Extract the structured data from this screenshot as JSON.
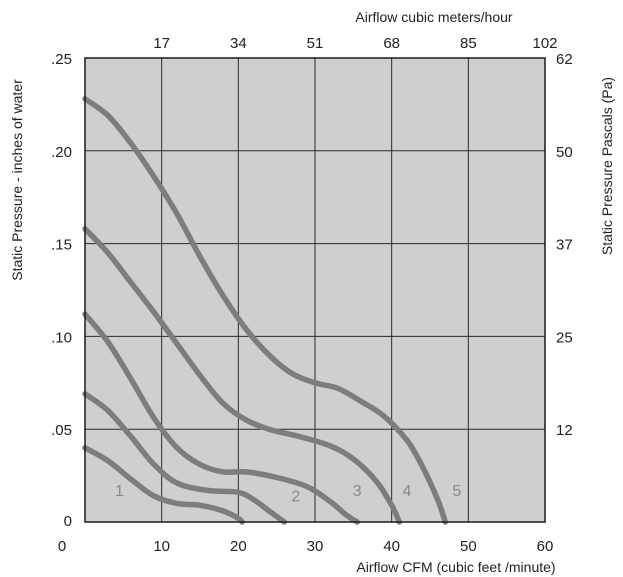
{
  "chart_data": {
    "type": "line",
    "xlabel_bottom": "Airflow  CFM (cubic feet /minute)",
    "xlabel_top": "Airflow cubic meters/hour",
    "ylabel_left": "Static Pressure - inches of water",
    "ylabel_right": "Static Pressure Pascals (Pa)",
    "xlim": [
      0,
      60
    ],
    "ylim": [
      0,
      0.25
    ],
    "grid": true,
    "bottom_ticks": [
      {
        "value": 0,
        "label": "0"
      },
      {
        "value": 10,
        "label": "10"
      },
      {
        "value": 20,
        "label": "20"
      },
      {
        "value": 30,
        "label": "30"
      },
      {
        "value": 40,
        "label": "40"
      },
      {
        "value": 50,
        "label": "50"
      },
      {
        "value": 60,
        "label": "60"
      }
    ],
    "top_ticks": [
      {
        "value": 10,
        "label": "17"
      },
      {
        "value": 20,
        "label": "34"
      },
      {
        "value": 30,
        "label": "51"
      },
      {
        "value": 40,
        "label": "68"
      },
      {
        "value": 50,
        "label": "85"
      },
      {
        "value": 60,
        "label": "102"
      }
    ],
    "left_ticks": [
      {
        "value": 0,
        "label": "0"
      },
      {
        "value": 0.05,
        "label": ".05"
      },
      {
        "value": 0.1,
        "label": ".10"
      },
      {
        "value": 0.15,
        "label": ".15"
      },
      {
        "value": 0.2,
        "label": ".20"
      },
      {
        "value": 0.25,
        "label": ".25"
      }
    ],
    "right_ticks": [
      {
        "value": 0.05,
        "label": "12"
      },
      {
        "value": 0.1,
        "label": "25"
      },
      {
        "value": 0.15,
        "label": "37"
      },
      {
        "value": 0.2,
        "label": "50"
      },
      {
        "value": 0.25,
        "label": "62"
      }
    ],
    "series": [
      {
        "name": "1",
        "points": [
          [
            0,
            0.04
          ],
          [
            3,
            0.033
          ],
          [
            6,
            0.023
          ],
          [
            9,
            0.014
          ],
          [
            12,
            0.01
          ],
          [
            15,
            0.009
          ],
          [
            18,
            0.006
          ],
          [
            20,
            0.002
          ],
          [
            20.5,
            0.0
          ]
        ]
      },
      {
        "name": "2",
        "points": [
          [
            0,
            0.069
          ],
          [
            3,
            0.06
          ],
          [
            6,
            0.046
          ],
          [
            9,
            0.031
          ],
          [
            12,
            0.021
          ],
          [
            16,
            0.017
          ],
          [
            20,
            0.016
          ],
          [
            22,
            0.012
          ],
          [
            24,
            0.006
          ],
          [
            26,
            0.0
          ]
        ]
      },
      {
        "name": "3",
        "points": [
          [
            0,
            0.112
          ],
          [
            3,
            0.097
          ],
          [
            6,
            0.077
          ],
          [
            9,
            0.056
          ],
          [
            12,
            0.04
          ],
          [
            15,
            0.031
          ],
          [
            18,
            0.027
          ],
          [
            21,
            0.027
          ],
          [
            25,
            0.024
          ],
          [
            29,
            0.019
          ],
          [
            32,
            0.011
          ],
          [
            34,
            0.004
          ],
          [
            35.5,
            0.0
          ]
        ]
      },
      {
        "name": "4",
        "points": [
          [
            0,
            0.158
          ],
          [
            3,
            0.145
          ],
          [
            6,
            0.129
          ],
          [
            9,
            0.113
          ],
          [
            12,
            0.096
          ],
          [
            15,
            0.079
          ],
          [
            18,
            0.064
          ],
          [
            21,
            0.055
          ],
          [
            24,
            0.05
          ],
          [
            28,
            0.046
          ],
          [
            32,
            0.041
          ],
          [
            35,
            0.034
          ],
          [
            38,
            0.022
          ],
          [
            40,
            0.009
          ],
          [
            41,
            0.0
          ]
        ]
      },
      {
        "name": "5",
        "points": [
          [
            0,
            0.228
          ],
          [
            3,
            0.219
          ],
          [
            6,
            0.204
          ],
          [
            9,
            0.186
          ],
          [
            12,
            0.166
          ],
          [
            15,
            0.143
          ],
          [
            18,
            0.122
          ],
          [
            21,
            0.104
          ],
          [
            24,
            0.09
          ],
          [
            27,
            0.08
          ],
          [
            30,
            0.075
          ],
          [
            33,
            0.072
          ],
          [
            36,
            0.065
          ],
          [
            39,
            0.057
          ],
          [
            42,
            0.044
          ],
          [
            44,
            0.03
          ],
          [
            46,
            0.012
          ],
          [
            47,
            0.0
          ]
        ]
      }
    ],
    "curve_labels": [
      {
        "text": "1",
        "x": 4.5,
        "y": 0.014
      },
      {
        "text": "2",
        "x": 27.5,
        "y": 0.011
      },
      {
        "text": "3",
        "x": 35.5,
        "y": 0.014
      },
      {
        "text": "4",
        "x": 42.0,
        "y": 0.014
      },
      {
        "text": "5",
        "x": 48.5,
        "y": 0.014
      }
    ],
    "colors": {
      "plot_bg": "#cfcfcf",
      "grid": "#2a2a2a",
      "curve": "#7d7d7d",
      "frame": "#1a1a1a"
    }
  }
}
